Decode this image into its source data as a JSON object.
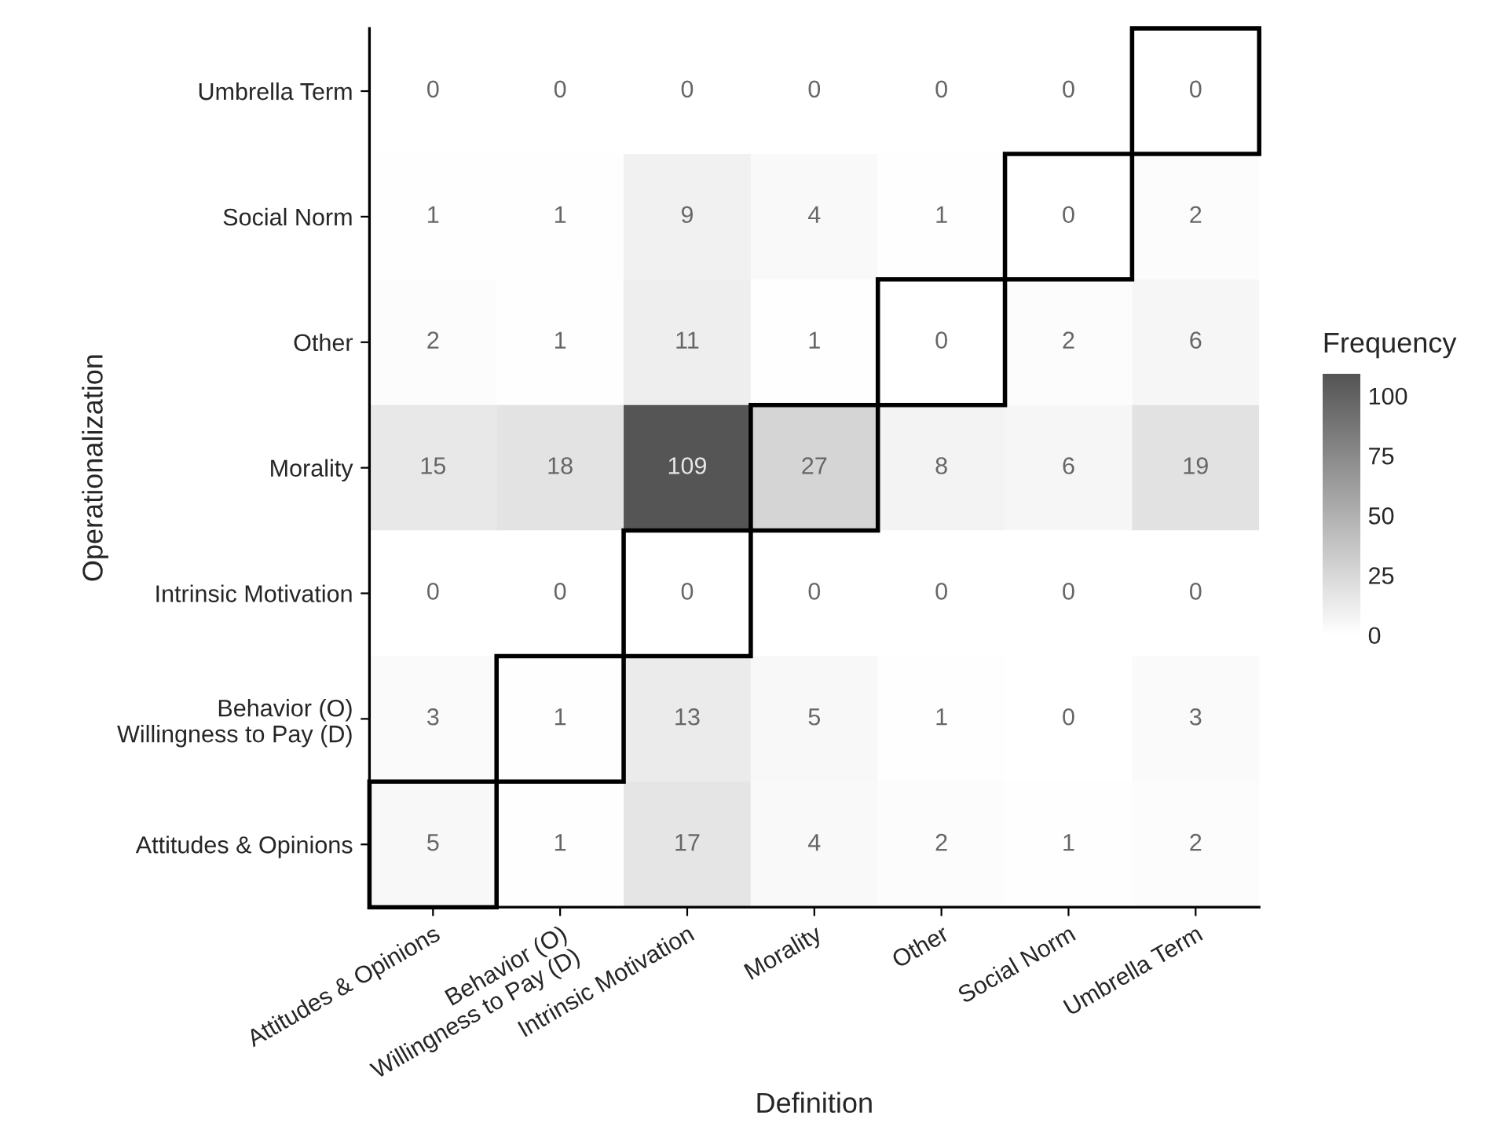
{
  "chart_data": {
    "type": "heatmap",
    "xlabel": "Definition",
    "ylabel": "Operationalization",
    "clabel": "Frequency",
    "categories": [
      "Attitudes & Opinions",
      "Behavior (O)\nWillingness to Pay (D)",
      "Intrinsic Motivation",
      "Morality",
      "Other",
      "Social Norm",
      "Umbrella Term"
    ],
    "y_categories": [
      "Umbrella Term",
      "Social Norm",
      "Other",
      "Morality",
      "Intrinsic Motivation",
      "Behavior (O)\nWillingness to Pay (D)",
      "Attitudes & Opinions"
    ],
    "cells": [
      [
        0,
        0,
        0,
        0,
        0,
        0,
        0
      ],
      [
        1,
        1,
        9,
        4,
        1,
        0,
        2
      ],
      [
        2,
        1,
        11,
        1,
        0,
        2,
        6
      ],
      [
        15,
        18,
        109,
        27,
        8,
        6,
        19
      ],
      [
        0,
        0,
        0,
        0,
        0,
        0,
        0
      ],
      [
        3,
        1,
        13,
        5,
        1,
        0,
        3
      ],
      [
        5,
        1,
        17,
        4,
        2,
        1,
        2
      ]
    ],
    "clim": [
      0,
      109
    ],
    "cticks": [
      0,
      25,
      50,
      75,
      100
    ],
    "data_labels": true
  }
}
